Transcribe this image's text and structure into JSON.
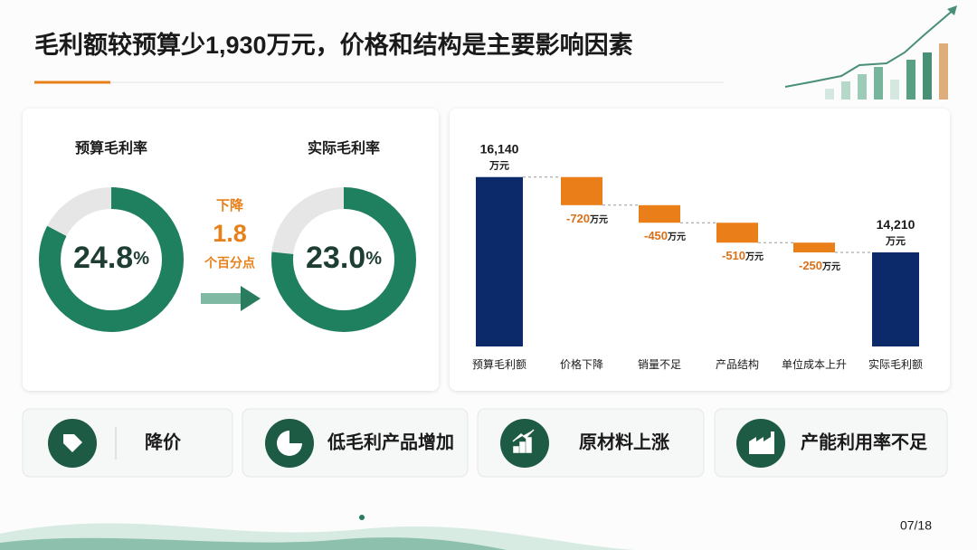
{
  "title": "毛利额较预算少1,930万元，价格和结构是主要影响因素",
  "chart_data": [
    {
      "type": "donut",
      "title": "预算毛利率",
      "values": [
        24.8
      ],
      "value_labels": [
        "24.8%"
      ],
      "range": [
        0,
        30
      ],
      "color": "#1f8060"
    },
    {
      "type": "donut",
      "title": "实际毛利率",
      "values": [
        23.0
      ],
      "value_labels": [
        "23.0%"
      ],
      "range": [
        0,
        30
      ],
      "color": "#1f8060"
    },
    {
      "type": "waterfall",
      "categories": [
        "预算毛利额",
        "价格下降",
        "销量不足",
        "产品结构",
        "单位成本上升",
        "实际毛利额"
      ],
      "values": [
        16140,
        -720,
        -450,
        -510,
        -250,
        14210
      ],
      "value_labels": [
        "16,140万元",
        "-720万元",
        "-450万元",
        "-510万元",
        "-250万元",
        "14,210万元"
      ],
      "ylim": [
        11800,
        17200
      ],
      "total_color": "#0c2a6a",
      "decrease_color": "#ea7f1a"
    }
  ],
  "change": {
    "direction": "下降",
    "value": 1.8,
    "unit": "个百分点"
  },
  "factors": [
    "降价",
    "低毛利产品增加",
    "原材料上涨",
    "产能利用率不足"
  ],
  "page": "07/18"
}
